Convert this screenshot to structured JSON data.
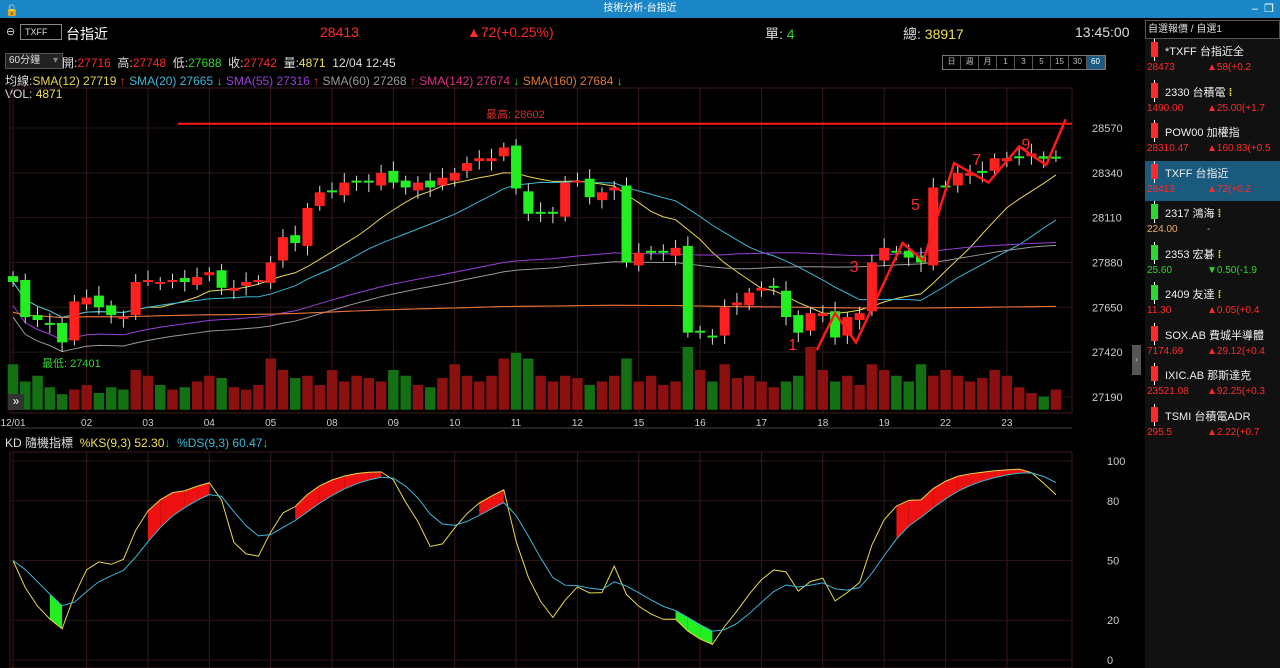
{
  "window": {
    "title": "技術分析-台指近",
    "lock_icon": "lock-icon",
    "min": "–",
    "restore": "❐"
  },
  "header": {
    "symbol": "TXFF",
    "name": "台指近",
    "price": "28413",
    "change": "▲72(+0.25%)",
    "single_label": "單:",
    "single": "4",
    "total_label": "總:",
    "total": "38917",
    "time": "13:45:00"
  },
  "ohlc": {
    "period": "60分鐘",
    "open_label": "開:",
    "open": "27716",
    "high_label": "高:",
    "high": "27748",
    "low_label": "低:",
    "low": "27688",
    "close_label": "收:",
    "close": "27742",
    "vol_label": "量:",
    "vol": "4871",
    "datetime": "12/04 12:45"
  },
  "timeframes": [
    "日",
    "週",
    "月",
    "1",
    "3",
    "5",
    "15",
    "30",
    "60"
  ],
  "timeframe_selected": "60",
  "ma_legend": {
    "prefix": "均線:",
    "items": [
      {
        "text": "SMA(12) 27719",
        "arrow": "↑",
        "color": "#e8d84a",
        "arrow_color": "#ff3030"
      },
      {
        "text": "SMA(20) 27665",
        "arrow": "↓",
        "color": "#3ab8d8",
        "arrow_color": "#2fd62f"
      },
      {
        "text": "SMA(55) 27316",
        "arrow": "↑",
        "color": "#9b3fd8",
        "arrow_color": "#ff3030"
      },
      {
        "text": "SMA(60) 27268",
        "arrow": "↑",
        "color": "#999999",
        "arrow_color": "#ff3030"
      },
      {
        "text": "SMA(142) 27674",
        "arrow": "↓",
        "color": "#e0307f",
        "arrow_color": "#2fd62f"
      },
      {
        "text": "SMA(160) 27684",
        "arrow": "↓",
        "color": "#e07a30",
        "arrow_color": "#2fd62f"
      }
    ]
  },
  "vol_legend": {
    "label": "VOL:",
    "value": "4871"
  },
  "kd_legend": {
    "title": "KD 隨機指標",
    "k": "%KS(9,3) 52.30",
    "k_arrow": "↓",
    "d": "%DS(9,3) 60.47",
    "d_arrow": "↓"
  },
  "chart_data": {
    "type": "candlestick",
    "date_labels": [
      {
        "i": 0,
        "t": "12/01"
      },
      {
        "i": 6,
        "t": "02"
      },
      {
        "i": 11,
        "t": "03"
      },
      {
        "i": 16,
        "t": "04"
      },
      {
        "i": 21,
        "t": "05"
      },
      {
        "i": 26,
        "t": "08"
      },
      {
        "i": 31,
        "t": "09"
      },
      {
        "i": 36,
        "t": "10"
      },
      {
        "i": 41,
        "t": "11"
      },
      {
        "i": 46,
        "t": "12"
      },
      {
        "i": 51,
        "t": "15"
      },
      {
        "i": 56,
        "t": "16"
      },
      {
        "i": 61,
        "t": "17"
      },
      {
        "i": 66,
        "t": "18"
      },
      {
        "i": 71,
        "t": "19"
      },
      {
        "i": 76,
        "t": "22"
      },
      {
        "i": 81,
        "t": "23"
      }
    ],
    "price_ticks": [
      28570,
      28340,
      28110,
      27880,
      27650,
      27420,
      27190
    ],
    "price_range": [
      27150,
      28720
    ],
    "closes": [
      27780,
      27600,
      27585,
      27560,
      27470,
      27680,
      27700,
      27650,
      27610,
      27600,
      27780,
      27790,
      27780,
      27790,
      27780,
      27805,
      27830,
      27750,
      27750,
      27780,
      27790,
      27880,
      28010,
      27980,
      28160,
      28240,
      28240,
      28290,
      28290,
      28290,
      28340,
      28290,
      28265,
      28290,
      28265,
      28315,
      28340,
      28390,
      28415,
      28415,
      28470,
      28260,
      28130,
      28130,
      28130,
      28290,
      28300,
      28215,
      28240,
      28265,
      27880,
      27930,
      27930,
      27930,
      27955,
      27520,
      27520,
      27495,
      27650,
      27675,
      27725,
      27750,
      27750,
      27600,
      27520,
      27620,
      27620,
      27495,
      27600,
      27620,
      27880,
      27955,
      27930,
      27905,
      27880,
      28265,
      28265,
      28340,
      28340,
      28340,
      28415,
      28415,
      28415,
      28440,
      28413,
      28420
    ],
    "volumes": [
      40,
      25,
      30,
      20,
      14,
      18,
      22,
      15,
      20,
      18,
      35,
      30,
      22,
      18,
      20,
      25,
      30,
      28,
      20,
      18,
      22,
      45,
      35,
      28,
      30,
      22,
      35,
      25,
      30,
      28,
      25,
      35,
      30,
      22,
      20,
      28,
      40,
      30,
      25,
      30,
      45,
      50,
      45,
      30,
      25,
      30,
      28,
      22,
      25,
      30,
      45,
      25,
      30,
      22,
      25,
      55,
      35,
      25,
      40,
      28,
      30,
      25,
      20,
      25,
      30,
      55,
      35,
      25,
      30,
      22,
      40,
      35,
      30,
      25,
      40,
      30,
      35,
      30,
      25,
      28,
      35,
      30,
      20,
      15,
      12,
      18
    ],
    "high_label": "最高: 28602",
    "high_value": 28602,
    "low_label": "最低: 27401",
    "low_value": 27401,
    "kd_ticks": [
      100,
      80,
      50,
      20,
      0
    ],
    "wave_labels": [
      {
        "t": "1",
        "i": 64,
        "p": 27430
      },
      {
        "t": "3",
        "i": 69,
        "p": 27830
      },
      {
        "t": "5",
        "i": 74,
        "p": 28150
      },
      {
        "t": "7",
        "i": 79,
        "p": 28380
      },
      {
        "t": "9",
        "i": 83,
        "p": 28460
      }
    ],
    "wave_path": [
      [
        65.5,
        27430
      ],
      [
        67,
        27620
      ],
      [
        68.7,
        27470
      ],
      [
        72.5,
        27980
      ],
      [
        74.2,
        27890
      ],
      [
        76.7,
        28390
      ],
      [
        79.5,
        28290
      ],
      [
        82,
        28475
      ],
      [
        84.2,
        28380
      ],
      [
        85.8,
        28615
      ]
    ]
  },
  "watchlist": {
    "title": "自選報價 / 自選1",
    "items": [
      {
        "name": "*TXFF 台指近全",
        "price": "28473",
        "change": "▲58(+0.2",
        "dir": "up"
      },
      {
        "name": "2330 台積電",
        "price": "1490.00",
        "change": "▲25.00(+1.7",
        "dir": "up",
        "flag": "⁞"
      },
      {
        "name": "POW00 加權指",
        "price": "28310.47",
        "change": "▲160.83(+0.5",
        "dir": "up"
      },
      {
        "name": "TXFF 台指近",
        "price": "28413",
        "change": "▲72(+0.2",
        "dir": "up",
        "selected": true
      },
      {
        "name": "2317 鴻海",
        "price": "224.00",
        "change": "-",
        "dir": "flat",
        "flag": "⁞"
      },
      {
        "name": "2353 宏碁",
        "price": "25.60",
        "change": "▼0.50(-1.9",
        "dir": "down",
        "flag": "⁞"
      },
      {
        "name": "2409 友達",
        "price": "11.30",
        "change": "▲0.05(+0.4",
        "dir": "up",
        "flag": "⁞"
      },
      {
        "name": "SOX.AB 費城半導體",
        "price": "7174.69",
        "change": "▲29.12(+0.4",
        "dir": "up"
      },
      {
        "name": "IXIC.AB 那斯達克",
        "price": "23521.08",
        "change": "▲92.25(+0.3",
        "dir": "up"
      },
      {
        "name": "TSMI 台積電ADR",
        "price": "295.5",
        "change": "▲2.22(+0.7",
        "dir": "up"
      }
    ]
  }
}
